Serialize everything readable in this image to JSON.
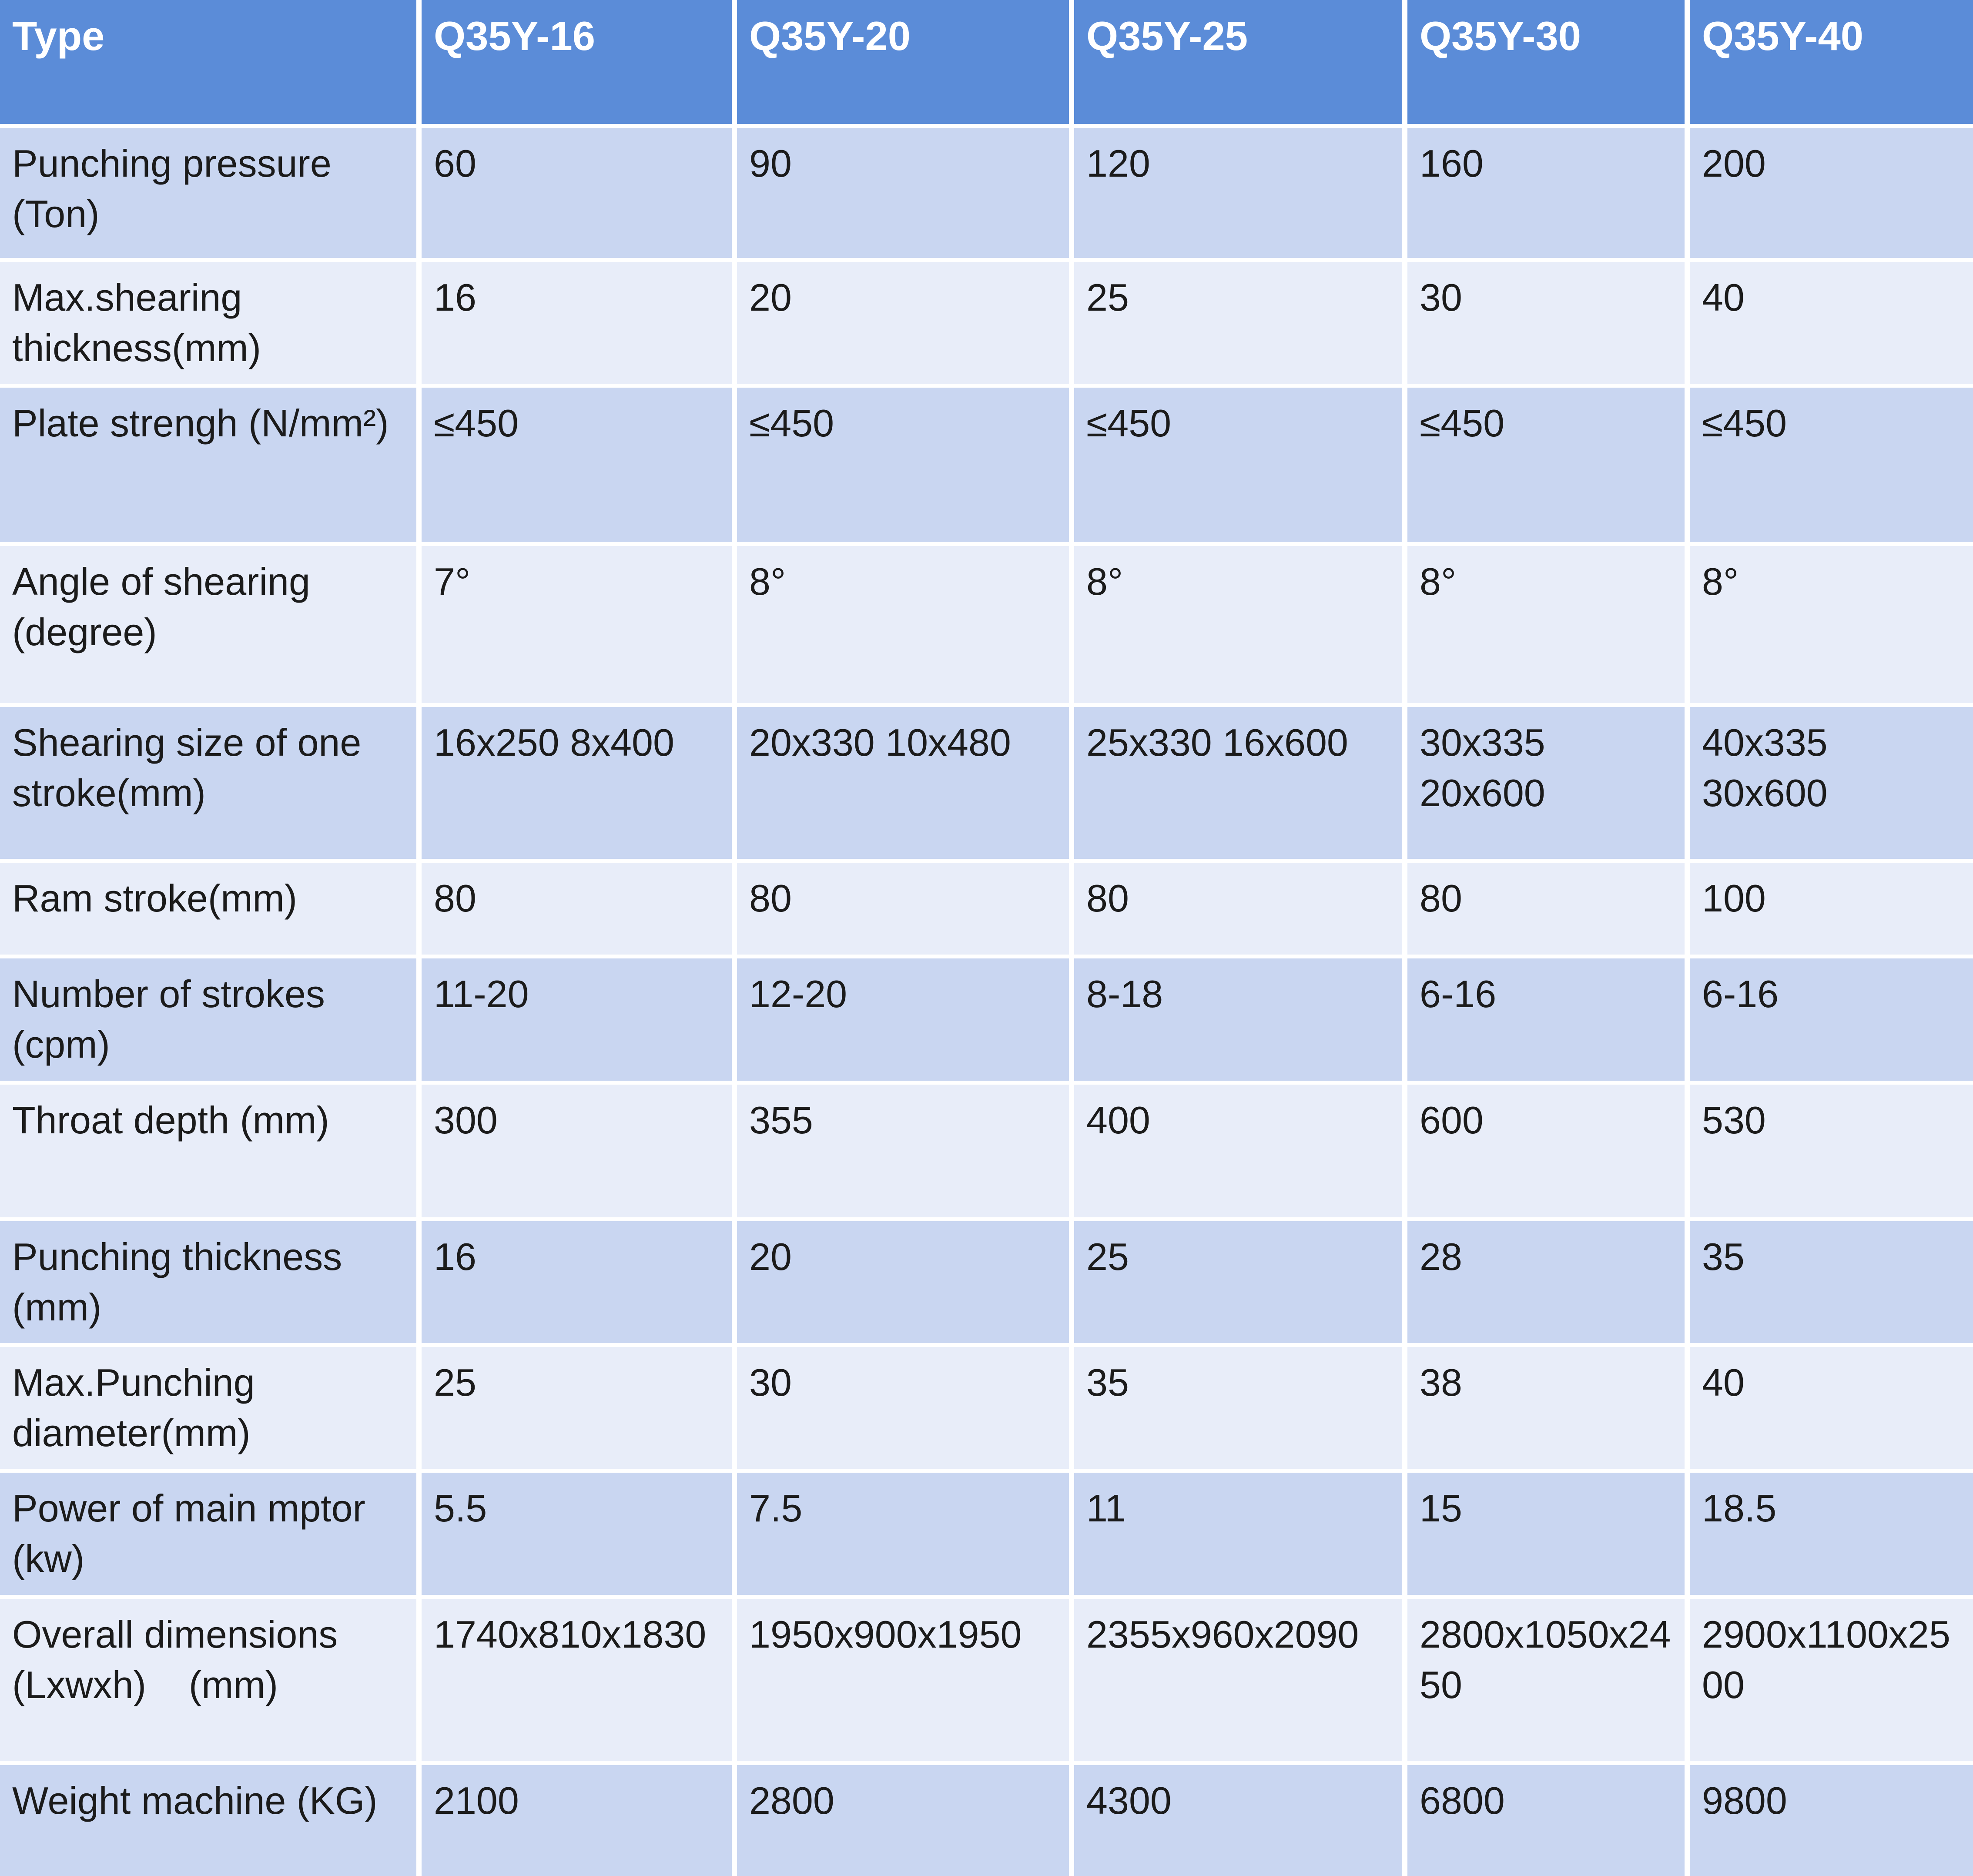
{
  "colors": {
    "header_bg": "#5b8cd8",
    "header_text": "#ffffff",
    "row_dark": "#c9d6f1",
    "row_light": "#e8edf9",
    "grid": "#ffffff",
    "cell_text": "#1b1b1b"
  },
  "chart_data": {
    "type": "table",
    "columns": [
      "Type",
      "Q35Y-16",
      "Q35Y-20",
      "Q35Y-25",
      "Q35Y-30",
      "Q35Y-40"
    ],
    "rows": [
      {
        "label": "Punching pressure (Ton)",
        "values": [
          "60",
          "90",
          "120",
          "160",
          "200"
        ]
      },
      {
        "label": "Max.shearing thickness(mm)",
        "values": [
          "16",
          "20",
          "25",
          "30",
          "40"
        ]
      },
      {
        "label": "Plate strengh (N/mm²)",
        "values": [
          "≤450",
          "≤450",
          "≤450",
          "≤450",
          "≤450"
        ]
      },
      {
        "label": "Angle of shearing (degree)",
        "values": [
          "7°",
          "8°",
          "8°",
          "8°",
          "8°"
        ]
      },
      {
        "label": "Shearing size of one stroke(mm)",
        "values": [
          "16x250 8x400",
          "20x330 10x480",
          "25x330 16x600",
          "30x335 20x600",
          "40x335 30x600"
        ]
      },
      {
        "label": "Ram stroke(mm)",
        "values": [
          "80",
          "80",
          "80",
          "80",
          "100"
        ]
      },
      {
        "label": "Number of strokes (cpm)",
        "values": [
          "11-20",
          "12-20",
          "8-18",
          "6-16",
          "6-16"
        ]
      },
      {
        "label": "Throat depth (mm)",
        "values": [
          "300",
          "355",
          "400",
          "600",
          "530"
        ]
      },
      {
        "label": "Punching thickness (mm)",
        "values": [
          "16",
          "20",
          "25",
          "28",
          "35"
        ]
      },
      {
        "label": "Max.Punching diameter(mm)",
        "values": [
          "25",
          "30",
          "35",
          "38",
          "40"
        ]
      },
      {
        "label": "Power of main mptor (kw)",
        "values": [
          "5.5",
          "7.5",
          "11",
          "15",
          "18.5"
        ]
      },
      {
        "label": "Overall dimensions (Lxwxh)    (mm)",
        "values": [
          "1740x810x1830",
          "1950x900x1950",
          "2355x960x2090",
          "2800x1050x2450",
          "2900x1100x2500"
        ]
      },
      {
        "label": "Weight machine (KG)",
        "values": [
          "2100",
          "2800",
          "4300",
          "6800",
          "9800"
        ]
      }
    ]
  }
}
